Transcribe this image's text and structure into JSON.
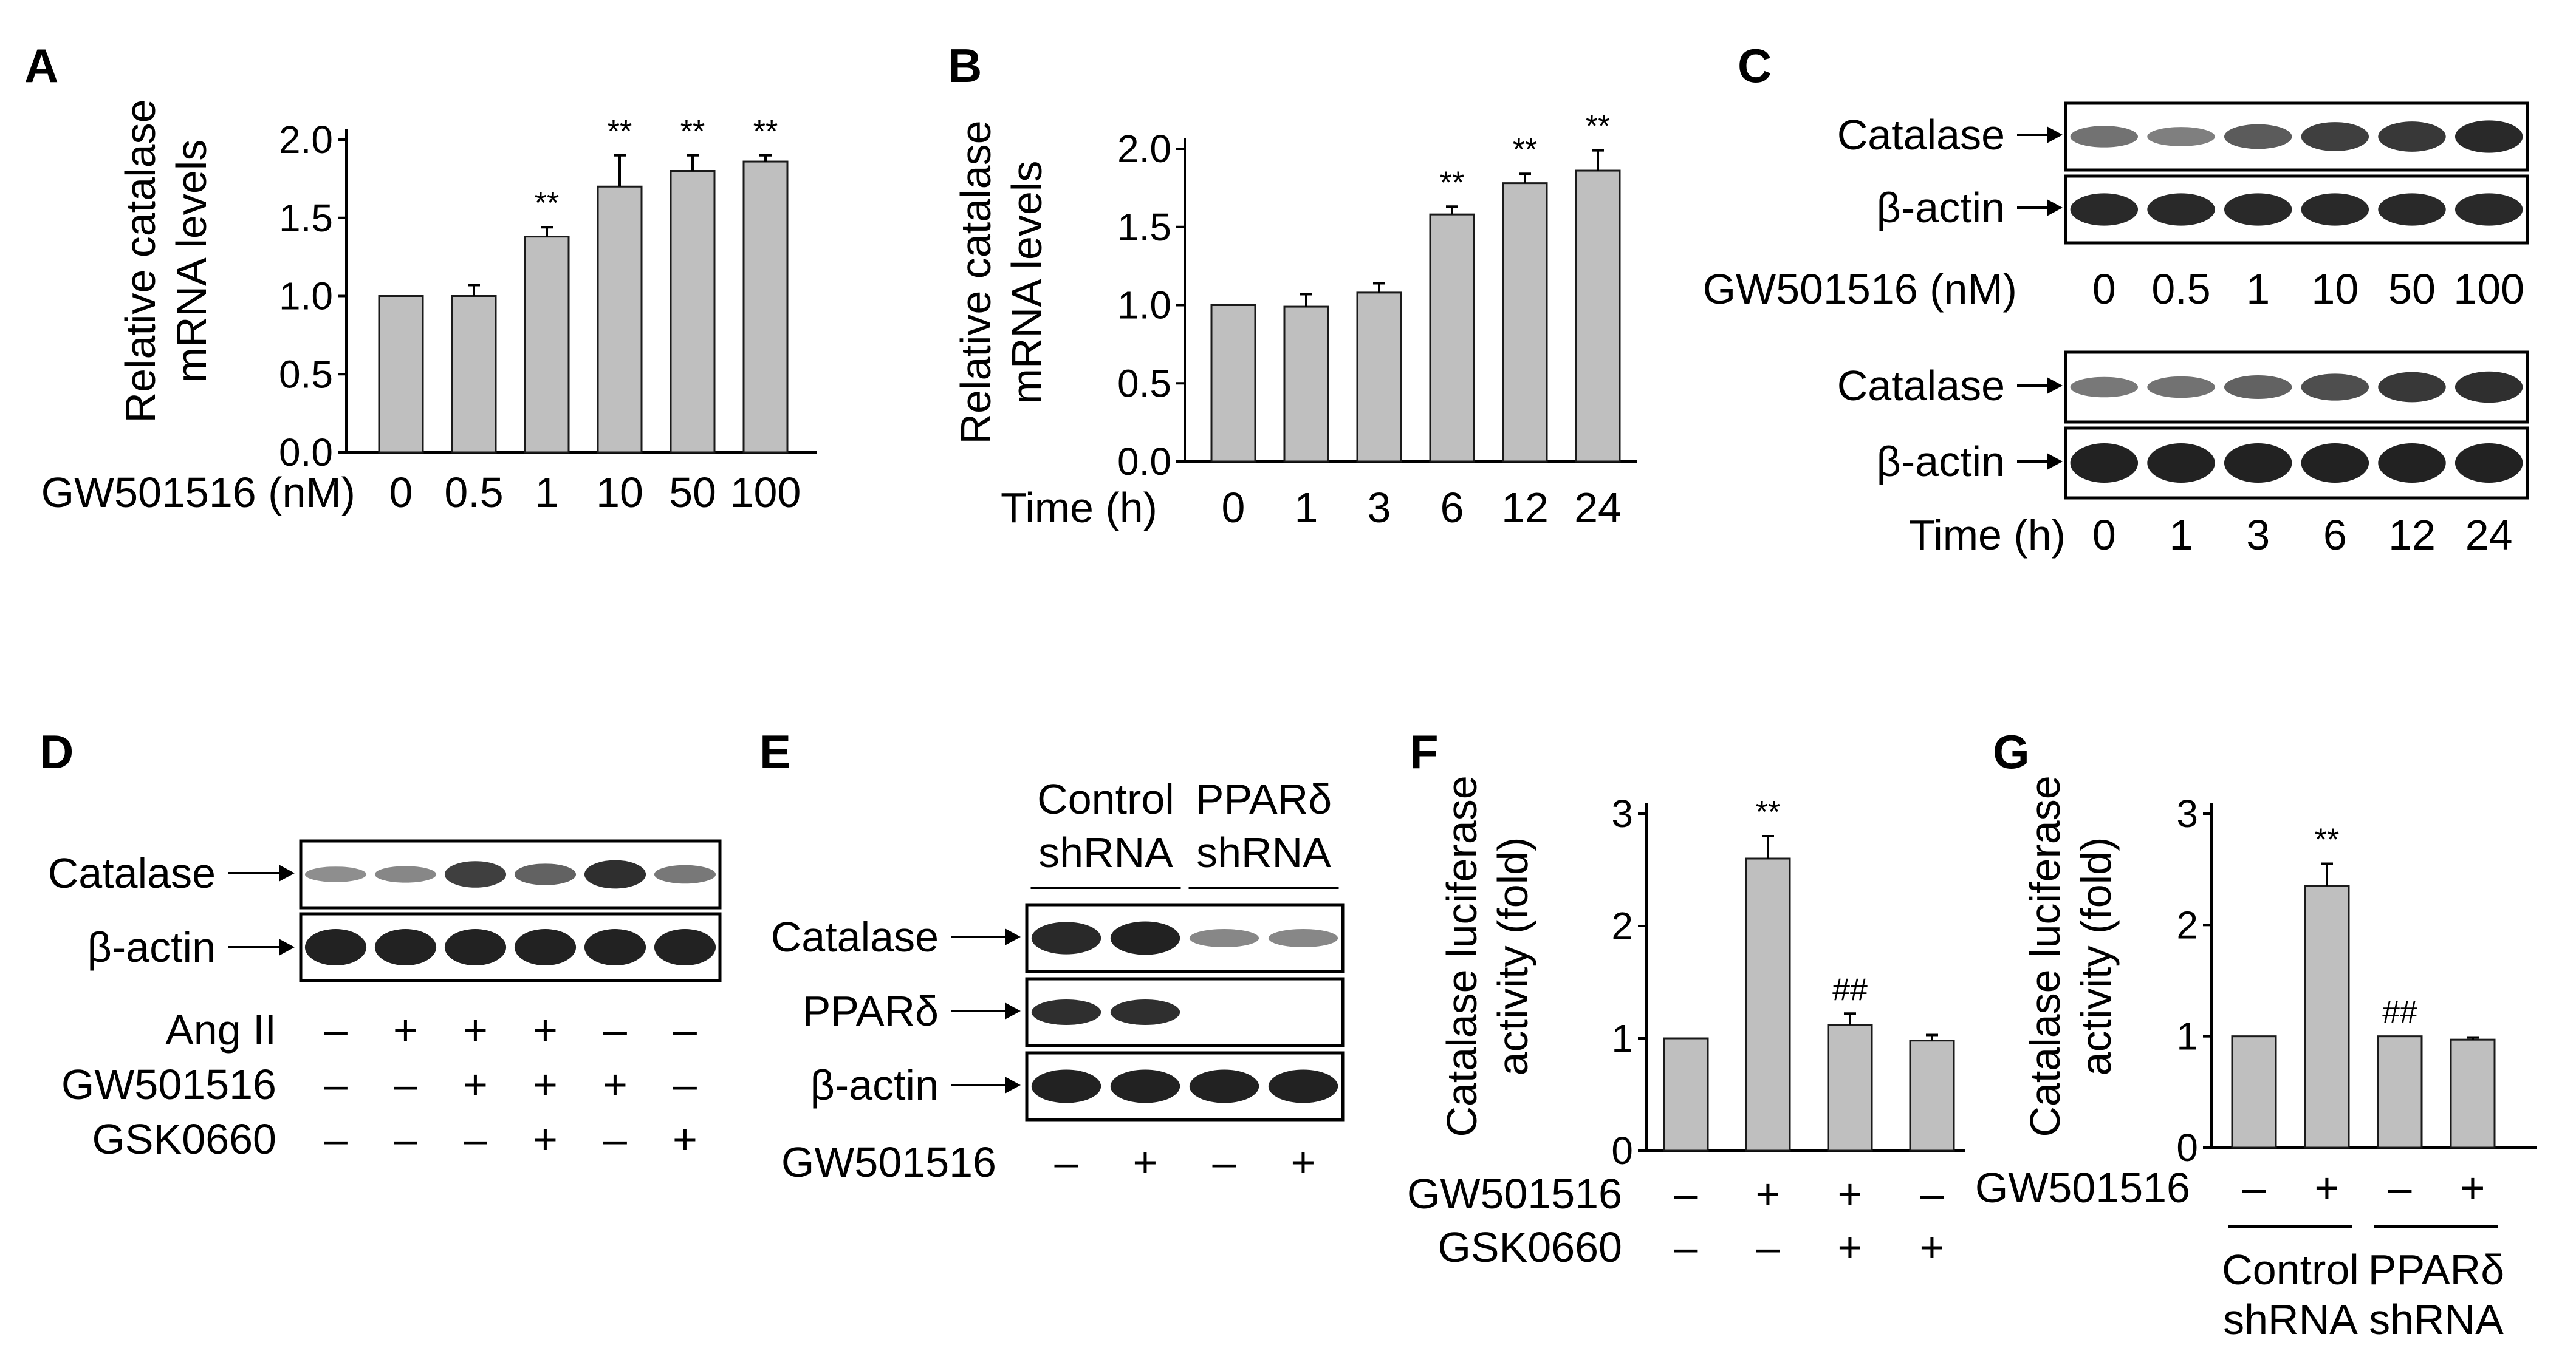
{
  "chart_data": [
    {
      "id": "A",
      "panel_label": "A",
      "type": "bar",
      "ylabel_lines": [
        "Relative catalase",
        "mRNA levels"
      ],
      "xlabel": "GW501516 (nM)",
      "categories": [
        "0",
        "0.5",
        "1",
        "10",
        "50",
        "100"
      ],
      "values": [
        1.0,
        1.0,
        1.38,
        1.7,
        1.8,
        1.86
      ],
      "errors": [
        0,
        0.07,
        0.06,
        0.2,
        0.1,
        0.04
      ],
      "significance": [
        "",
        "",
        "**",
        "**",
        "**",
        "**"
      ],
      "ylim": [
        0,
        2.0
      ],
      "yticks": [
        "0.0",
        "0.5",
        "1.0",
        "1.5",
        "2.0"
      ],
      "bar_color": "#bfbfbf"
    },
    {
      "id": "B",
      "panel_label": "B",
      "type": "bar",
      "ylabel_lines": [
        "Relative catalase",
        "mRNA levels"
      ],
      "xlabel": "Time (h)",
      "categories": [
        "0",
        "1",
        "3",
        "6",
        "12",
        "24"
      ],
      "values": [
        1.0,
        0.99,
        1.08,
        1.58,
        1.78,
        1.86
      ],
      "errors": [
        0,
        0.08,
        0.06,
        0.05,
        0.06,
        0.13
      ],
      "significance": [
        "",
        "",
        "",
        "**",
        "**",
        "**"
      ],
      "ylim": [
        0,
        2.0
      ],
      "yticks": [
        "0.0",
        "0.5",
        "1.0",
        "1.5",
        "2.0"
      ],
      "bar_color": "#bfbfbf"
    },
    {
      "id": "F",
      "panel_label": "F",
      "type": "bar",
      "ylabel_lines": [
        "Catalase luciferase",
        "activity (fold)"
      ],
      "categories": [
        "1",
        "2",
        "3",
        "4"
      ],
      "values": [
        1.0,
        2.6,
        1.12,
        0.98
      ],
      "errors": [
        0,
        0.2,
        0.1,
        0.05
      ],
      "significance": [
        "",
        "**",
        "##",
        ""
      ],
      "ylim": [
        0,
        3
      ],
      "yticks": [
        "0",
        "1",
        "2",
        "3"
      ],
      "treatments": [
        {
          "label": "GW501516",
          "signs": [
            "–",
            "+",
            "+",
            "–"
          ]
        },
        {
          "label": "GSK0660",
          "signs": [
            "–",
            "–",
            "+",
            "+"
          ]
        }
      ],
      "bar_color": "#bfbfbf"
    },
    {
      "id": "G",
      "panel_label": "G",
      "type": "bar",
      "ylabel_lines": [
        "Catalase luciferase",
        "activity (fold)"
      ],
      "categories": [
        "1",
        "2",
        "3",
        "4"
      ],
      "values": [
        1.0,
        2.35,
        1.0,
        0.97
      ],
      "errors": [
        0,
        0.2,
        0,
        0.02
      ],
      "significance": [
        "",
        "**",
        "##",
        ""
      ],
      "ylim": [
        0,
        3
      ],
      "yticks": [
        "0",
        "1",
        "2",
        "3"
      ],
      "treatments": [
        {
          "label": "GW501516",
          "signs": [
            "–",
            "+",
            "–",
            "+"
          ]
        }
      ],
      "groups": [
        {
          "lines": [
            "Control",
            "shRNA"
          ]
        },
        {
          "lines": [
            "PPARδ",
            "shRNA"
          ]
        }
      ],
      "bar_color": "#bfbfbf"
    }
  ],
  "blots": {
    "C": {
      "panel_label": "C",
      "top_rows": [
        "Catalase",
        "β-actin"
      ],
      "top_axis_label": "GW501516 (nM)",
      "top_lanes": [
        "0",
        "0.5",
        "1",
        "10",
        "50",
        "100"
      ],
      "top_catalase_intensity": [
        0.45,
        0.35,
        0.6,
        0.8,
        0.85,
        0.95
      ],
      "bottom_rows": [
        "Catalase",
        "β-actin"
      ],
      "bottom_axis_label": "Time (h)",
      "bottom_lanes": [
        "0",
        "1",
        "3",
        "6",
        "12",
        "24"
      ],
      "bottom_catalase_intensity": [
        0.4,
        0.45,
        0.55,
        0.7,
        0.85,
        0.9
      ]
    },
    "D": {
      "panel_label": "D",
      "rows": [
        "Catalase",
        "β-actin"
      ],
      "catalase_intensity": [
        0.25,
        0.3,
        0.8,
        0.55,
        0.9,
        0.4
      ],
      "treatments": [
        {
          "label": "Ang II",
          "signs": [
            "–",
            "+",
            "+",
            "+",
            "–",
            "–"
          ]
        },
        {
          "label": "GW501516",
          "signs": [
            "–",
            "–",
            "+",
            "+",
            "+",
            "–"
          ]
        },
        {
          "label": "GSK0660",
          "signs": [
            "–",
            "–",
            "–",
            "+",
            "–",
            "+"
          ]
        }
      ]
    },
    "E": {
      "panel_label": "E",
      "groups": [
        {
          "lines": [
            "Control",
            "shRNA"
          ]
        },
        {
          "lines": [
            "PPARδ",
            "shRNA"
          ]
        }
      ],
      "rows": [
        "Catalase",
        "PPARδ",
        "β-actin"
      ],
      "treatment": {
        "label": "GW501516",
        "signs": [
          "–",
          "+",
          "–",
          "+"
        ]
      },
      "catalase_intensity": [
        0.95,
        1.0,
        0.3,
        0.3
      ],
      "ppard_intensity": [
        0.9,
        0.9,
        0,
        0
      ]
    }
  }
}
